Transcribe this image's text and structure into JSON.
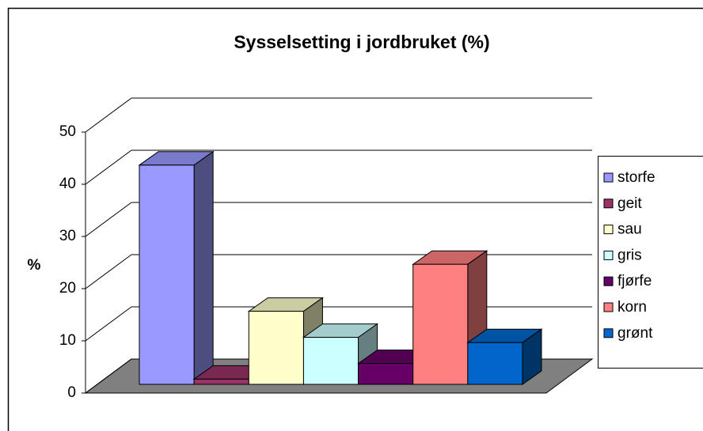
{
  "chart_data": {
    "type": "bar3d",
    "title": "Sysselsetting i jordbruket (%)",
    "y_label": "%",
    "ylim": [
      0,
      50
    ],
    "yticks": [
      0,
      10,
      20,
      30,
      40,
      50
    ],
    "grid": true,
    "legend": "right",
    "series": [
      {
        "name": "storfe",
        "color": "#9999ff",
        "values": [
          42
        ]
      },
      {
        "name": "geit",
        "color": "#993366",
        "values": [
          1
        ]
      },
      {
        "name": "sau",
        "color": "#ffffcc",
        "values": [
          14
        ]
      },
      {
        "name": "gris",
        "color": "#ccffff",
        "values": [
          9
        ]
      },
      {
        "name": "fjørfe",
        "color": "#660066",
        "values": [
          4
        ]
      },
      {
        "name": "korn",
        "color": "#ff8080",
        "values": [
          23
        ]
      },
      {
        "name": "grønt",
        "color": "#0066cc",
        "values": [
          8
        ]
      }
    ]
  }
}
